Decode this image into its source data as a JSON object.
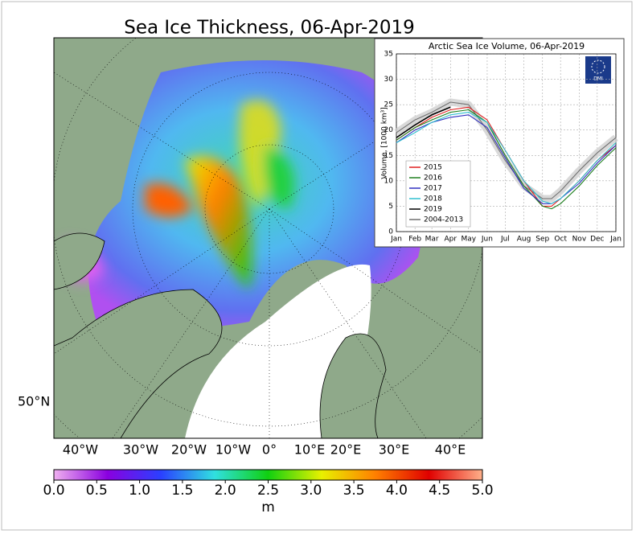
{
  "title": "Sea Ice Thickness, 06-Apr-2019",
  "map": {
    "lon_labels": [
      "40°W",
      "30°W",
      "20°W",
      "10°W",
      "0°",
      "10°E",
      "20°E",
      "30°E",
      "40°E"
    ],
    "lat_label": "50°N"
  },
  "colorbar": {
    "lim": [
      0,
      5
    ],
    "colors": [
      "#f0b0f0",
      "#8a00e0",
      "#2a40ff",
      "#30e0e0",
      "#10d010",
      "#e8f000",
      "#ff8000",
      "#e00000",
      "#ffb08a"
    ],
    "ticks": [
      {
        "value": 0,
        "label": "0.0"
      },
      {
        "value": 0.5,
        "label": "0.5"
      },
      {
        "value": 1,
        "label": "1.0"
      },
      {
        "value": 1.5,
        "label": "1.5"
      },
      {
        "value": 2,
        "label": "2.0"
      },
      {
        "value": 2.5,
        "label": "2.5"
      },
      {
        "value": 3,
        "label": "3.0"
      },
      {
        "value": 3.5,
        "label": "3.5"
      },
      {
        "value": 4,
        "label": "4.0"
      },
      {
        "value": 4.5,
        "label": "4.5"
      },
      {
        "value": 5,
        "label": "5.0"
      }
    ],
    "label": "m"
  },
  "chart_data": {
    "type": "line",
    "title": "Arctic Sea Ice Volume, 06-Apr-2019",
    "y_label": "Volume, [1000 km³]",
    "logo_text": "DMI",
    "x": [
      0,
      31,
      59,
      90,
      120,
      151,
      181,
      212,
      243,
      258,
      273,
      304,
      334,
      365
    ],
    "xlim": [
      0,
      365
    ],
    "xticks": [
      {
        "value": 0,
        "label": "Jan"
      },
      {
        "value": 31,
        "label": "Feb"
      },
      {
        "value": 59,
        "label": "Mar"
      },
      {
        "value": 90,
        "label": "Apr"
      },
      {
        "value": 120,
        "label": "May"
      },
      {
        "value": 151,
        "label": "Jun"
      },
      {
        "value": 181,
        "label": "Jul"
      },
      {
        "value": 212,
        "label": "Aug"
      },
      {
        "value": 243,
        "label": "Sep"
      },
      {
        "value": 273,
        "label": "Oct"
      },
      {
        "value": 304,
        "label": "Nov"
      },
      {
        "value": 334,
        "label": "Dec"
      },
      {
        "value": 365,
        "label": "Jan"
      }
    ],
    "ylim": [
      0,
      35
    ],
    "yticks": [
      0,
      5,
      10,
      15,
      20,
      25,
      30,
      35
    ],
    "grid": true,
    "legend": "lower left",
    "series": [
      {
        "name": "2015",
        "color": "#e02020",
        "values": [
          18,
          20.5,
          22.5,
          24,
          24.5,
          22,
          16,
          10,
          5,
          5,
          6.5,
          10,
          14,
          17
        ]
      },
      {
        "name": "2016",
        "color": "#208020",
        "values": [
          18,
          20.5,
          22,
          23.5,
          24,
          21.5,
          15,
          9,
          5,
          4.5,
          5.5,
          9,
          13,
          16.5
        ]
      },
      {
        "name": "2017",
        "color": "#3030c0",
        "values": [
          17.5,
          20,
          21.5,
          22.5,
          23,
          20.5,
          14.5,
          8.5,
          5.5,
          5.5,
          6.5,
          9.5,
          13.5,
          17
        ]
      },
      {
        "name": "2018",
        "color": "#30c0d0",
        "values": [
          17.5,
          19.5,
          21.5,
          23,
          23.5,
          21.5,
          16,
          10,
          6,
          5.5,
          6.5,
          10,
          14,
          17.5
        ]
      },
      {
        "name": "2019",
        "color": "#000000",
        "values": [
          18.5,
          21,
          23,
          24.5,
          null,
          null,
          null,
          null,
          null,
          null,
          null,
          null,
          null,
          null
        ]
      },
      {
        "name": "2004-2013",
        "color": "#707070",
        "band": true,
        "values": [
          19.5,
          22,
          23.5,
          25.5,
          25,
          20,
          14,
          9,
          6.5,
          6.5,
          8,
          12,
          15.5,
          18.5
        ]
      }
    ]
  }
}
